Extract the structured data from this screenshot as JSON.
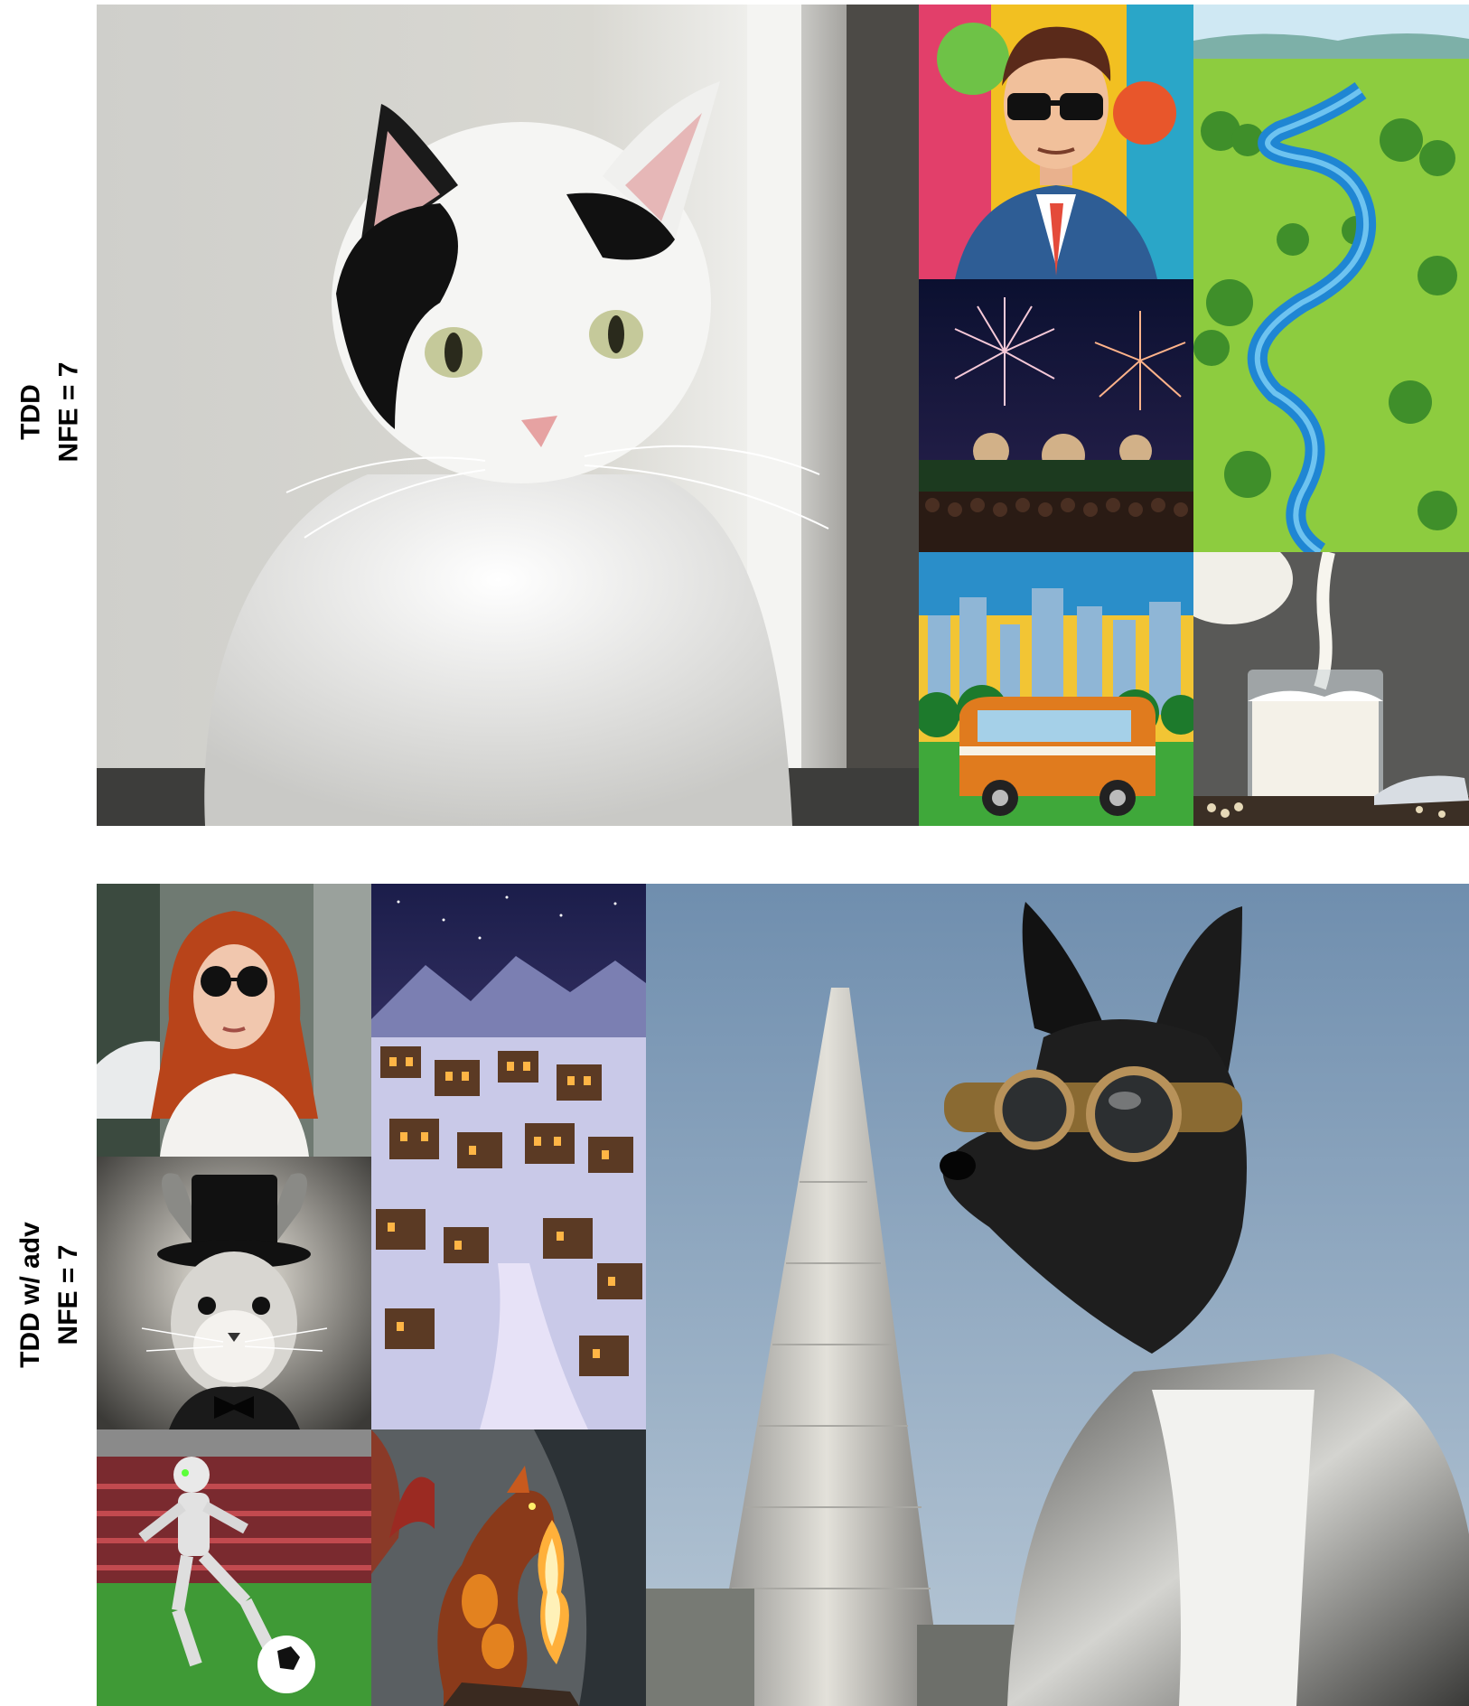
{
  "rows": [
    {
      "label_line1": "TDD",
      "label_line2": "NFE = 7"
    },
    {
      "label_line1": "TDD w/ adv",
      "label_line2": "NFE = 7"
    }
  ],
  "images": {
    "cat": "cat-photo",
    "pop_art_man": "pop-art-man-in-sunglasses",
    "river_valley": "illustrated-river-valley",
    "fireworks": "fireworks-over-crowd",
    "city_van": "van-in-front-of-city-skyline",
    "milk": "milk-pouring-into-glass",
    "redhead": "red-haired-woman-in-sunglasses",
    "snow_village": "snowy-night-village",
    "rabbit": "rabbit-in-top-hat",
    "robot": "robot-playing-soccer",
    "dragon": "fire-breathing-dragon",
    "dog_aviator": "dog-with-goggles-and-leather-jacket"
  }
}
